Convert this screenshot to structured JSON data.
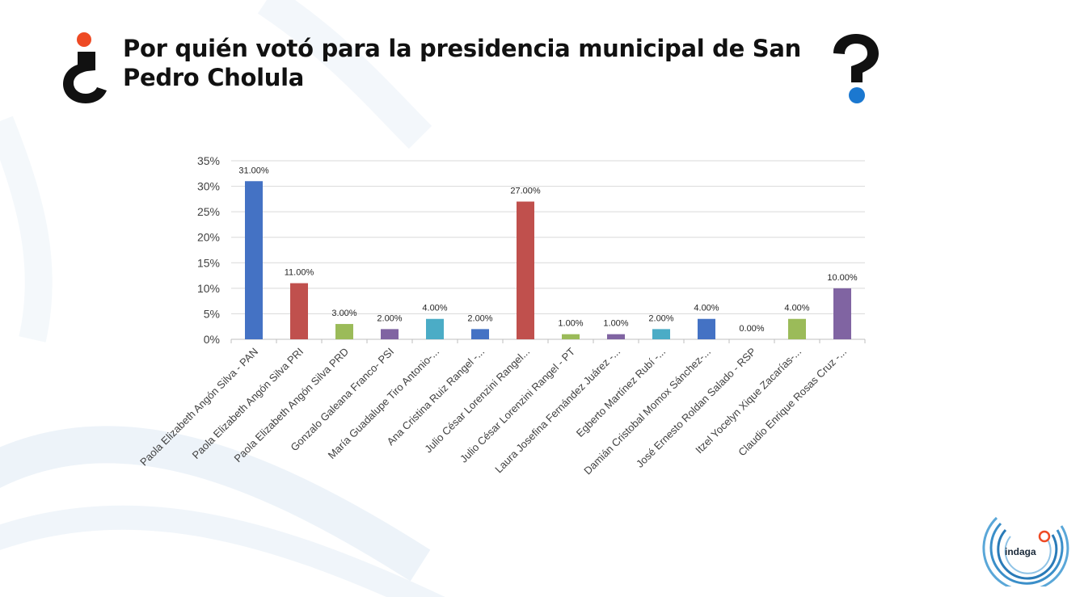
{
  "header": {
    "title": "Por quién votó para la presidencia municipal de San Pedro Cholula"
  },
  "brand": {
    "logo_text": "indaga",
    "accent_orange": "#ee4a24",
    "accent_blue": "#1b78d0"
  },
  "chart_data": {
    "type": "bar",
    "title": "",
    "xlabel": "",
    "ylabel": "",
    "ylim": [
      0,
      35
    ],
    "yticks": [
      "0%",
      "5%",
      "10%",
      "15%",
      "20%",
      "25%",
      "30%",
      "35%"
    ],
    "grid": true,
    "categories": [
      "Paola Elizabeth Angón Silva - PAN",
      "Paola Elizabeth Angón Silva PRI",
      "Paola Elizabeth Angón Silva PRD",
      "Gonzalo Galeana Franco- PSI",
      "María Guadalupe Tiro Antonio-...",
      "Ana Cristina Ruiz Rangel -...",
      "Julio César Lorenzini Rangel...",
      "Julio César Lorenzini Rangel - PT",
      "Laura Josefina Fernández Juárez -...",
      "Egberto Martínez Rubí -...",
      "Damián Cristobal Momox Sánchez-...",
      "José Ernesto Roldan Salado - RSP",
      "Itzel Yocelyn Xique Zacarías-...",
      "Claudio Enrique Rosas Cruz -..."
    ],
    "values": [
      31,
      11,
      3,
      2,
      4,
      2,
      27,
      1,
      1,
      2,
      4,
      0,
      4,
      10
    ],
    "data_labels": [
      "31.00%",
      "11.00%",
      "3.00%",
      "2.00%",
      "4.00%",
      "2.00%",
      "27.00%",
      "1.00%",
      "1.00%",
      "2.00%",
      "4.00%",
      "0.00%",
      "4.00%",
      "10.00%"
    ],
    "colors": [
      "#4472c4",
      "#c0504d",
      "#9bbb59",
      "#8064a2",
      "#4bacc6",
      "#4472c4",
      "#c0504d",
      "#9bbb59",
      "#8064a2",
      "#4bacc6",
      "#4472c4",
      "#c0504d",
      "#9bbb59",
      "#8064a2"
    ]
  }
}
